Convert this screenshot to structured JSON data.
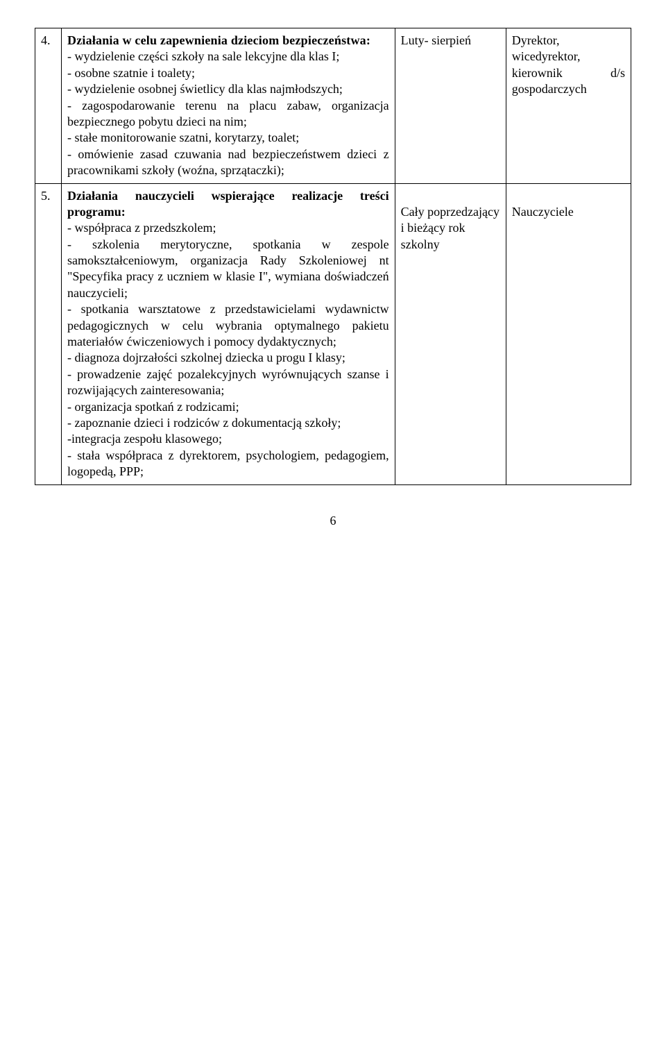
{
  "rows": [
    {
      "num": "4.",
      "title": "Działania w celu zapewnienia dzieciom bezpieczeństwa:",
      "bullets": [
        "- wydzielenie części szkoły na sale lekcyjne dla klas I;",
        "- osobne szatnie i toalety;",
        "- wydzielenie osobnej świetlicy dla klas najmłodszych;",
        "- zagospodarowanie terenu na placu zabaw, organizacja bezpiecznego pobytu dzieci na nim;",
        "- stałe monitorowanie szatni, korytarzy, toalet;",
        "- omówienie zasad czuwania nad bezpieczeństwem dzieci z pracownikami szkoły (woźna, sprzątaczki);"
      ],
      "time": "Luty- sierpień",
      "who": "Dyrektor, wicedyrektor, kierownik d/s gospodarczych"
    },
    {
      "num": "5.",
      "title": "Działania nauczycieli wspierające realizacje treści programu:",
      "bullets": [
        "- współpraca z przedszkolem;",
        "- szkolenia merytoryczne, spotkania w zespole samokształceniowym, organizacja Rady Szkoleniowej nt \"Specyfika pracy z uczniem w klasie I\", wymiana doświadczeń nauczycieli;",
        "- spotkania warsztatowe z przedstawicielami wydawnictw pedagogicznych w celu wybrania optymalnego pakietu materiałów ćwiczeniowych i pomocy dydaktycznych;",
        "- diagnoza dojrzałości szkolnej dziecka u progu I klasy;",
        "- prowadzenie zajęć pozalekcyjnych wyrównujących szanse i rozwijających zainteresowania;",
        "- organizacja spotkań z rodzicami;",
        "- zapoznanie dzieci i rodziców z dokumentacją szkoły;",
        "-integracja zespołu klasowego;",
        "- stała współpraca z dyrektorem, psychologiem, pedagogiem, logopedą, PPP;"
      ],
      "time_pre": "",
      "time": "Cały poprzedzający i bieżący rok szkolny",
      "who_pre": "",
      "who": "Nauczyciele"
    }
  ],
  "page_number": "6"
}
